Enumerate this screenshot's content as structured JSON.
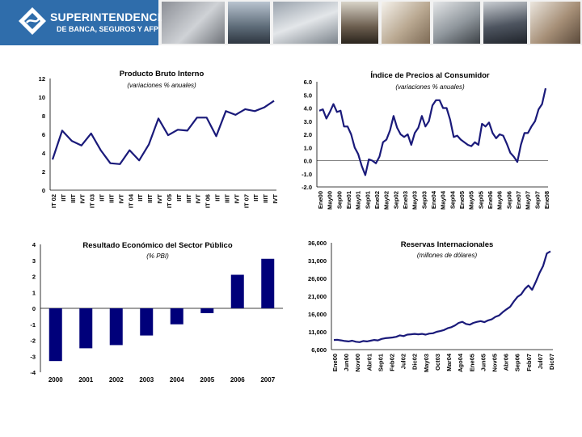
{
  "header": {
    "title": "SUPERINTENDENCIA",
    "subtitle": "DE BANCA, SEGUROS Y AFP"
  },
  "chart_data": [
    {
      "id": "pbi",
      "type": "line",
      "title": "Producto Bruto Interno",
      "subtitle": "(variaciones % anuales)",
      "ylim": [
        0,
        12
      ],
      "yticks": [
        0,
        2,
        4,
        6,
        8,
        10,
        12
      ],
      "color": "#1a1a7a",
      "tick_labels": [
        "IT 02",
        "IIT",
        "IIIT",
        "IVT",
        "IT 03",
        "IIT",
        "IIIT",
        "IVT",
        "IT 04",
        "IIT",
        "IIIT",
        "IVT",
        "IT 05",
        "IIT",
        "IIIT",
        "IVT",
        "IT 06",
        "IIT",
        "IIIT",
        "IVT",
        "IT 07",
        "IIT",
        "IIIT",
        "IVT"
      ],
      "values": [
        3.3,
        6.4,
        5.3,
        4.8,
        6.1,
        4.3,
        2.9,
        2.8,
        4.3,
        3.2,
        4.9,
        7.7,
        5.9,
        6.5,
        6.4,
        7.8,
        7.8,
        5.8,
        8.5,
        8.1,
        8.7,
        8.5,
        8.9,
        9.6
      ]
    },
    {
      "id": "ipc",
      "type": "line",
      "title": "Índice de Precios al Consumidor",
      "subtitle": "(variaciones % anuales)",
      "ylim": [
        -2.0,
        6.0
      ],
      "yticks": [
        "6.0",
        "5.0",
        "4.0",
        "3.0",
        "2.0",
        "1.0",
        "0.0",
        "-1.0",
        "-2.0"
      ],
      "color": "#1a1a7a",
      "tick_labels": [
        "Ene00",
        "May00",
        "Sep00",
        "Ene01",
        "May01",
        "Sep01",
        "Ene02",
        "May02",
        "Sep02",
        "Ene03",
        "May03",
        "Sep03",
        "Ene04",
        "May04",
        "Sep04",
        "Ene05",
        "May05",
        "Sep05",
        "Ene06",
        "May06",
        "Sep06",
        "Ene07",
        "May07",
        "Sep07",
        "Ene08"
      ],
      "values": [
        3.8,
        3.9,
        3.2,
        3.7,
        4.3,
        3.7,
        3.8,
        2.6,
        2.6,
        2.0,
        1.0,
        0.5,
        -0.4,
        -1.1,
        0.1,
        0.0,
        -0.2,
        0.3,
        1.4,
        1.6,
        2.3,
        3.4,
        2.5,
        2.0,
        1.8,
        2.0,
        1.2,
        2.1,
        2.5,
        3.4,
        2.6,
        3.0,
        4.2,
        4.6,
        4.6,
        4.0,
        4.0,
        3.1,
        1.8,
        1.9,
        1.6,
        1.4,
        1.2,
        1.1,
        1.4,
        1.2,
        2.8,
        2.6,
        2.9,
        2.1,
        1.7,
        2.0,
        1.9,
        1.3,
        0.6,
        0.3,
        -0.1,
        1.2,
        2.1,
        2.1,
        2.6,
        3.0,
        3.9,
        4.3,
        5.5
      ]
    },
    {
      "id": "resultado",
      "type": "bar",
      "title": "Resultado Económico del Sector Público",
      "subtitle": "(% PBI)",
      "ylim": [
        -4,
        4
      ],
      "yticks": [
        4,
        3,
        2,
        1,
        0,
        -1,
        -2,
        -3,
        -4
      ],
      "color": "#00007a",
      "categories": [
        "2000",
        "2001",
        "2002",
        "2003",
        "2004",
        "2005",
        "2006",
        "2007"
      ],
      "values": [
        -3.3,
        -2.5,
        -2.3,
        -1.7,
        -1.0,
        -0.3,
        2.1,
        3.1
      ]
    },
    {
      "id": "reservas",
      "type": "line",
      "title": "Reservas Internacionales",
      "subtitle": "(millones de dólares)",
      "ylim": [
        6000,
        36000
      ],
      "yticks": [
        "36,000",
        "31,000",
        "26,000",
        "21,000",
        "16,000",
        "11,000",
        "6,000"
      ],
      "color": "#1a1a7a",
      "tick_labels": [
        "Ene00",
        "Jun00",
        "Nov00",
        "Abr01",
        "Sep01",
        "Feb02",
        "Jul02",
        "Dic02",
        "May03",
        "Oct03",
        "Mar04",
        "Ago04",
        "Ene05",
        "Jun05",
        "Nov05",
        "Abr06",
        "Sep06",
        "Feb07",
        "Jul07",
        "Dic07"
      ],
      "values": [
        8700,
        8750,
        8600,
        8400,
        8300,
        8500,
        8200,
        8100,
        8400,
        8300,
        8500,
        8700,
        8600,
        9000,
        9200,
        9300,
        9400,
        9600,
        10000,
        9800,
        10200,
        10300,
        10400,
        10300,
        10400,
        10200,
        10500,
        10600,
        11000,
        11200,
        11500,
        12000,
        12300,
        12800,
        13500,
        13800,
        13200,
        13000,
        13500,
        13800,
        14000,
        13700,
        14200,
        14500,
        15200,
        15600,
        16500,
        17300,
        18000,
        19500,
        20800,
        21500,
        23000,
        24000,
        22800,
        25000,
        27500,
        29500,
        33000,
        33600
      ]
    }
  ]
}
